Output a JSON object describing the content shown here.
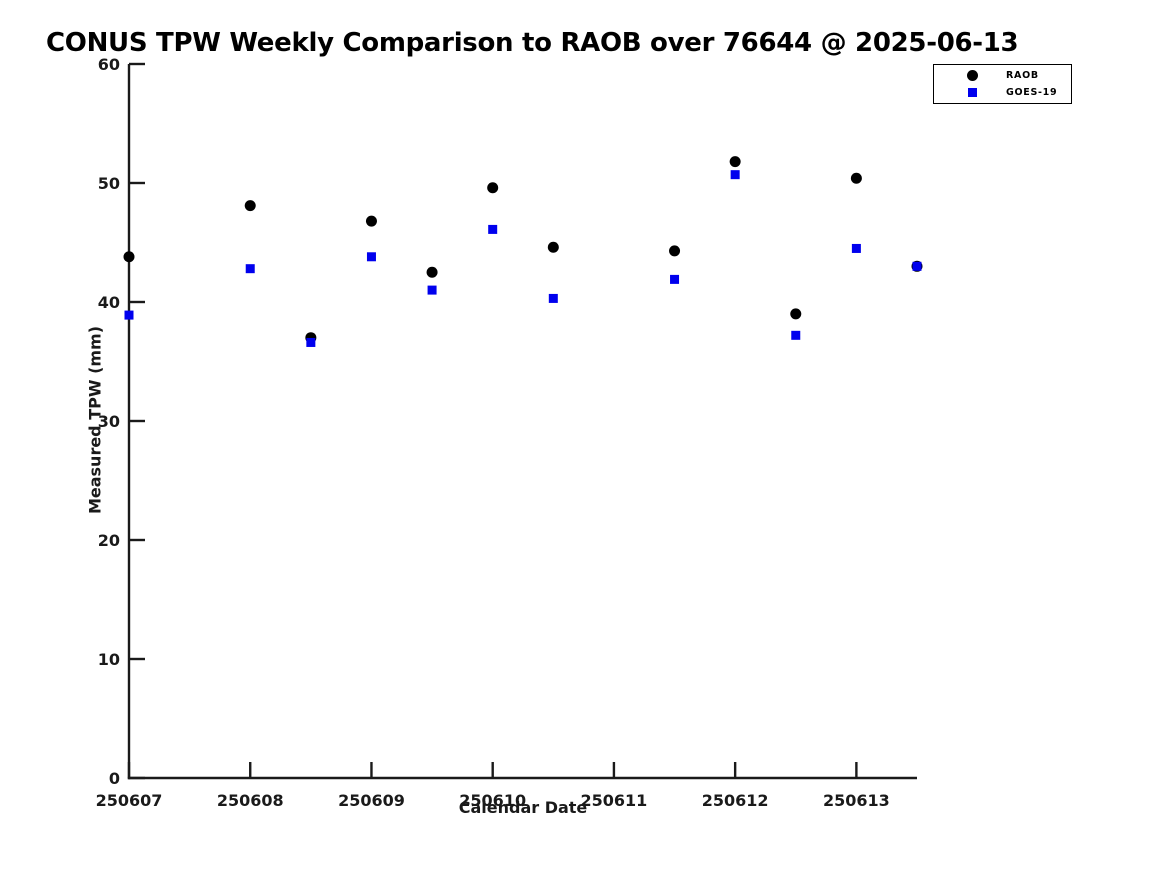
{
  "chart_data": {
    "type": "scatter",
    "title": "CONUS TPW Weekly Comparison to RAOB over 76644 @ 2025-06-13",
    "xlabel": "Calendar Date",
    "ylabel": "Measured TPW (mm)",
    "xlim": [
      250607,
      250613.5
    ],
    "ylim": [
      0,
      60
    ],
    "x_ticks": [
      250607,
      250608,
      250609,
      250610,
      250611,
      250612,
      250613
    ],
    "x_tick_labels": [
      "250607",
      "250608",
      "250609",
      "250610",
      "250611",
      "250612",
      "250613"
    ],
    "y_ticks": [
      0,
      10,
      20,
      30,
      40,
      50,
      60
    ],
    "y_tick_labels": [
      "0",
      "10",
      "20",
      "30",
      "40",
      "50",
      "60"
    ],
    "grid": false,
    "legend_position": "top-right",
    "axis_color": "#1a1a1a",
    "series": [
      {
        "name": "RAOB",
        "marker": "circle",
        "color": "#000000",
        "x": [
          250607,
          250608,
          250608.5,
          250609,
          250609.5,
          250610,
          250610.5,
          250611.5,
          250612,
          250612.5,
          250613,
          250613.5
        ],
        "y": [
          43.8,
          48.1,
          37.0,
          46.8,
          42.5,
          49.6,
          44.6,
          44.3,
          51.8,
          39.0,
          50.4,
          43.0
        ]
      },
      {
        "name": "GOES-19",
        "marker": "square",
        "color": "#0000ee",
        "x": [
          250607,
          250608,
          250608.5,
          250609,
          250609.5,
          250610,
          250610.5,
          250611.5,
          250612,
          250612.5,
          250613,
          250613.5
        ],
        "y": [
          38.9,
          42.8,
          36.6,
          43.8,
          41.0,
          46.1,
          40.3,
          41.9,
          50.7,
          37.2,
          44.5,
          43.0
        ]
      }
    ]
  }
}
